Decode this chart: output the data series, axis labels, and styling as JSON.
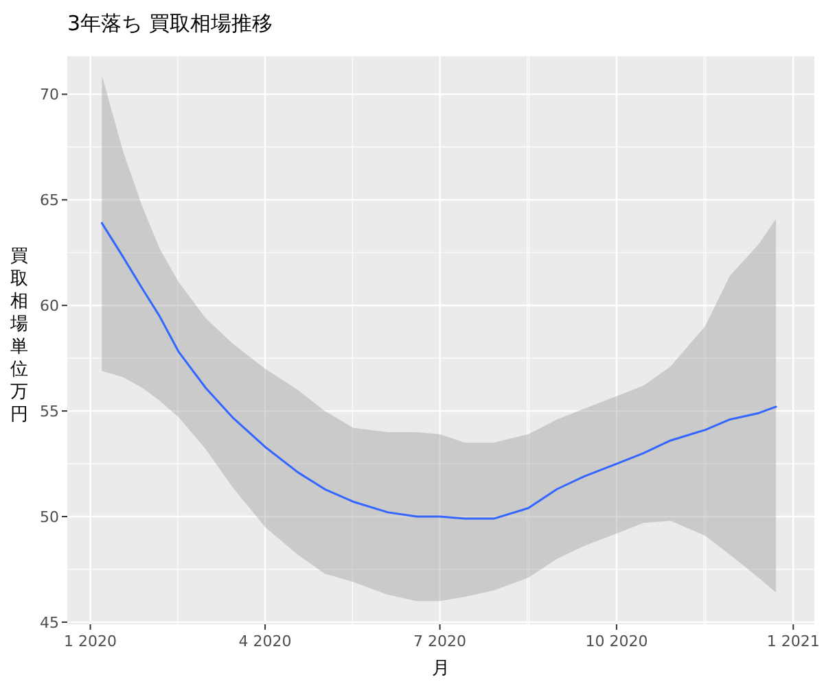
{
  "chart_data": {
    "type": "line",
    "title": "3年落ち 買取相場推移",
    "xlabel": "月",
    "ylabel": "買取相場単位万円",
    "x": [
      "2020-01-07",
      "2020-01-18",
      "2020-01-28",
      "2020-02-06",
      "2020-02-16",
      "2020-03-01",
      "2020-03-15",
      "2020-04-01",
      "2020-04-18",
      "2020-05-02",
      "2020-05-17",
      "2020-06-04",
      "2020-06-19",
      "2020-07-01",
      "2020-07-14",
      "2020-07-29",
      "2020-08-16",
      "2020-08-31",
      "2020-09-14",
      "2020-10-01",
      "2020-10-15",
      "2020-10-29",
      "2020-11-16",
      "2020-11-29",
      "2020-12-14",
      "2020-12-23"
    ],
    "series": [
      {
        "color": "#3366ff",
        "values": [
          63.9,
          62.3,
          60.8,
          59.5,
          57.8,
          56.1,
          54.7,
          53.3,
          52.1,
          51.3,
          50.7,
          50.2,
          50.0,
          50.0,
          49.9,
          49.9,
          50.4,
          51.3,
          51.9,
          52.5,
          53.0,
          53.6,
          54.1,
          54.6,
          54.9,
          55.2
        ],
        "upper": [
          70.9,
          67.3,
          64.7,
          62.7,
          61.1,
          59.4,
          58.2,
          57.0,
          56.0,
          55.0,
          54.2,
          54.0,
          54.0,
          53.9,
          53.5,
          53.5,
          53.9,
          54.6,
          55.1,
          55.7,
          56.2,
          57.1,
          59.0,
          61.4,
          62.9,
          64.1
        ],
        "lower": [
          56.9,
          56.6,
          56.1,
          55.5,
          54.7,
          53.2,
          51.4,
          49.5,
          48.2,
          47.3,
          46.9,
          46.3,
          46.0,
          46.0,
          46.2,
          46.5,
          47.1,
          48.0,
          48.6,
          49.2,
          49.7,
          49.8,
          49.1,
          48.2,
          47.1,
          46.4
        ]
      }
    ],
    "xlim": [
      "2019-12-20",
      "2021-01-12"
    ],
    "ylim": [
      44.9,
      71.8
    ],
    "xticks": [
      {
        "value": "2020-01-01",
        "label": "1 2020"
      },
      {
        "value": "2020-04-01",
        "label": "4 2020"
      },
      {
        "value": "2020-07-01",
        "label": "7 2020"
      },
      {
        "value": "2020-10-01",
        "label": "10 2020"
      },
      {
        "value": "2021-01-01",
        "label": "1 2021"
      }
    ],
    "yticks": [
      45,
      50,
      55,
      60,
      65,
      70
    ],
    "grid": true,
    "marker": "none",
    "line_style": "solid"
  }
}
